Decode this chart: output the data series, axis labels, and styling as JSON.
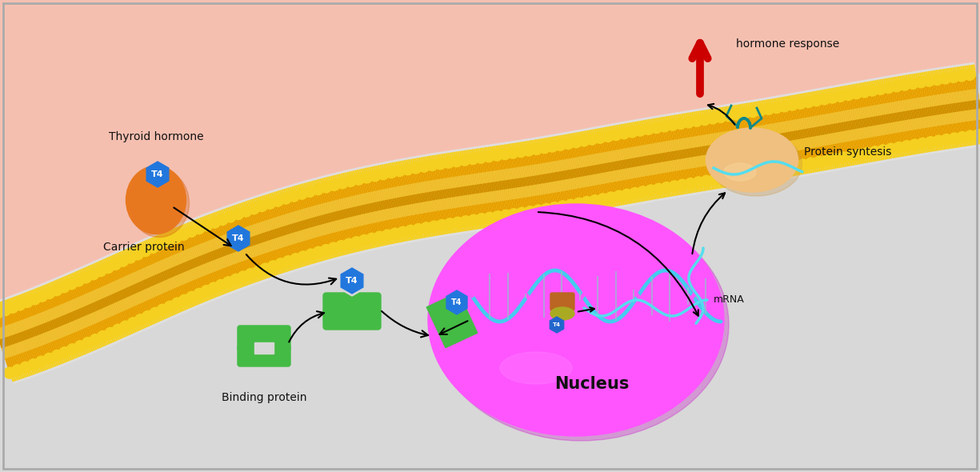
{
  "fig_width": 12.25,
  "fig_height": 5.9,
  "bg_outer": "#f5bfb0",
  "bg_inner": "#d8d8d8",
  "nucleus_color": "#ff55ff",
  "carrier_protein_color": "#e87820",
  "binding_protein_color": "#44bb44",
  "t4_color": "#2277dd",
  "ribosome_color": "#f0c080",
  "arrow_color": "#111111",
  "red_arrow_color": "#cc0000",
  "mRNA_color": "#55ddee",
  "dna_color1": "#44ccee",
  "dna_color2": "#ff55ff",
  "teal_color": "#118888",
  "labels": {
    "thyroid_hormone": "Thyroid hormone",
    "carrier_protein": "Carrier protein",
    "binding_protein": "Binding protein",
    "nucleus": "Nucleus",
    "mRNA": "mRNA",
    "protein_syntesis": "Protein syntesis",
    "hormone_response": "hormone response",
    "T4": "T4"
  },
  "mem_ctrl_x": [
    0,
    80,
    160,
    240,
    320,
    420,
    540,
    670,
    810,
    960,
    1100,
    1225
  ],
  "mem_ctrl_y": [
    430,
    400,
    365,
    330,
    300,
    270,
    245,
    225,
    200,
    175,
    150,
    130
  ]
}
